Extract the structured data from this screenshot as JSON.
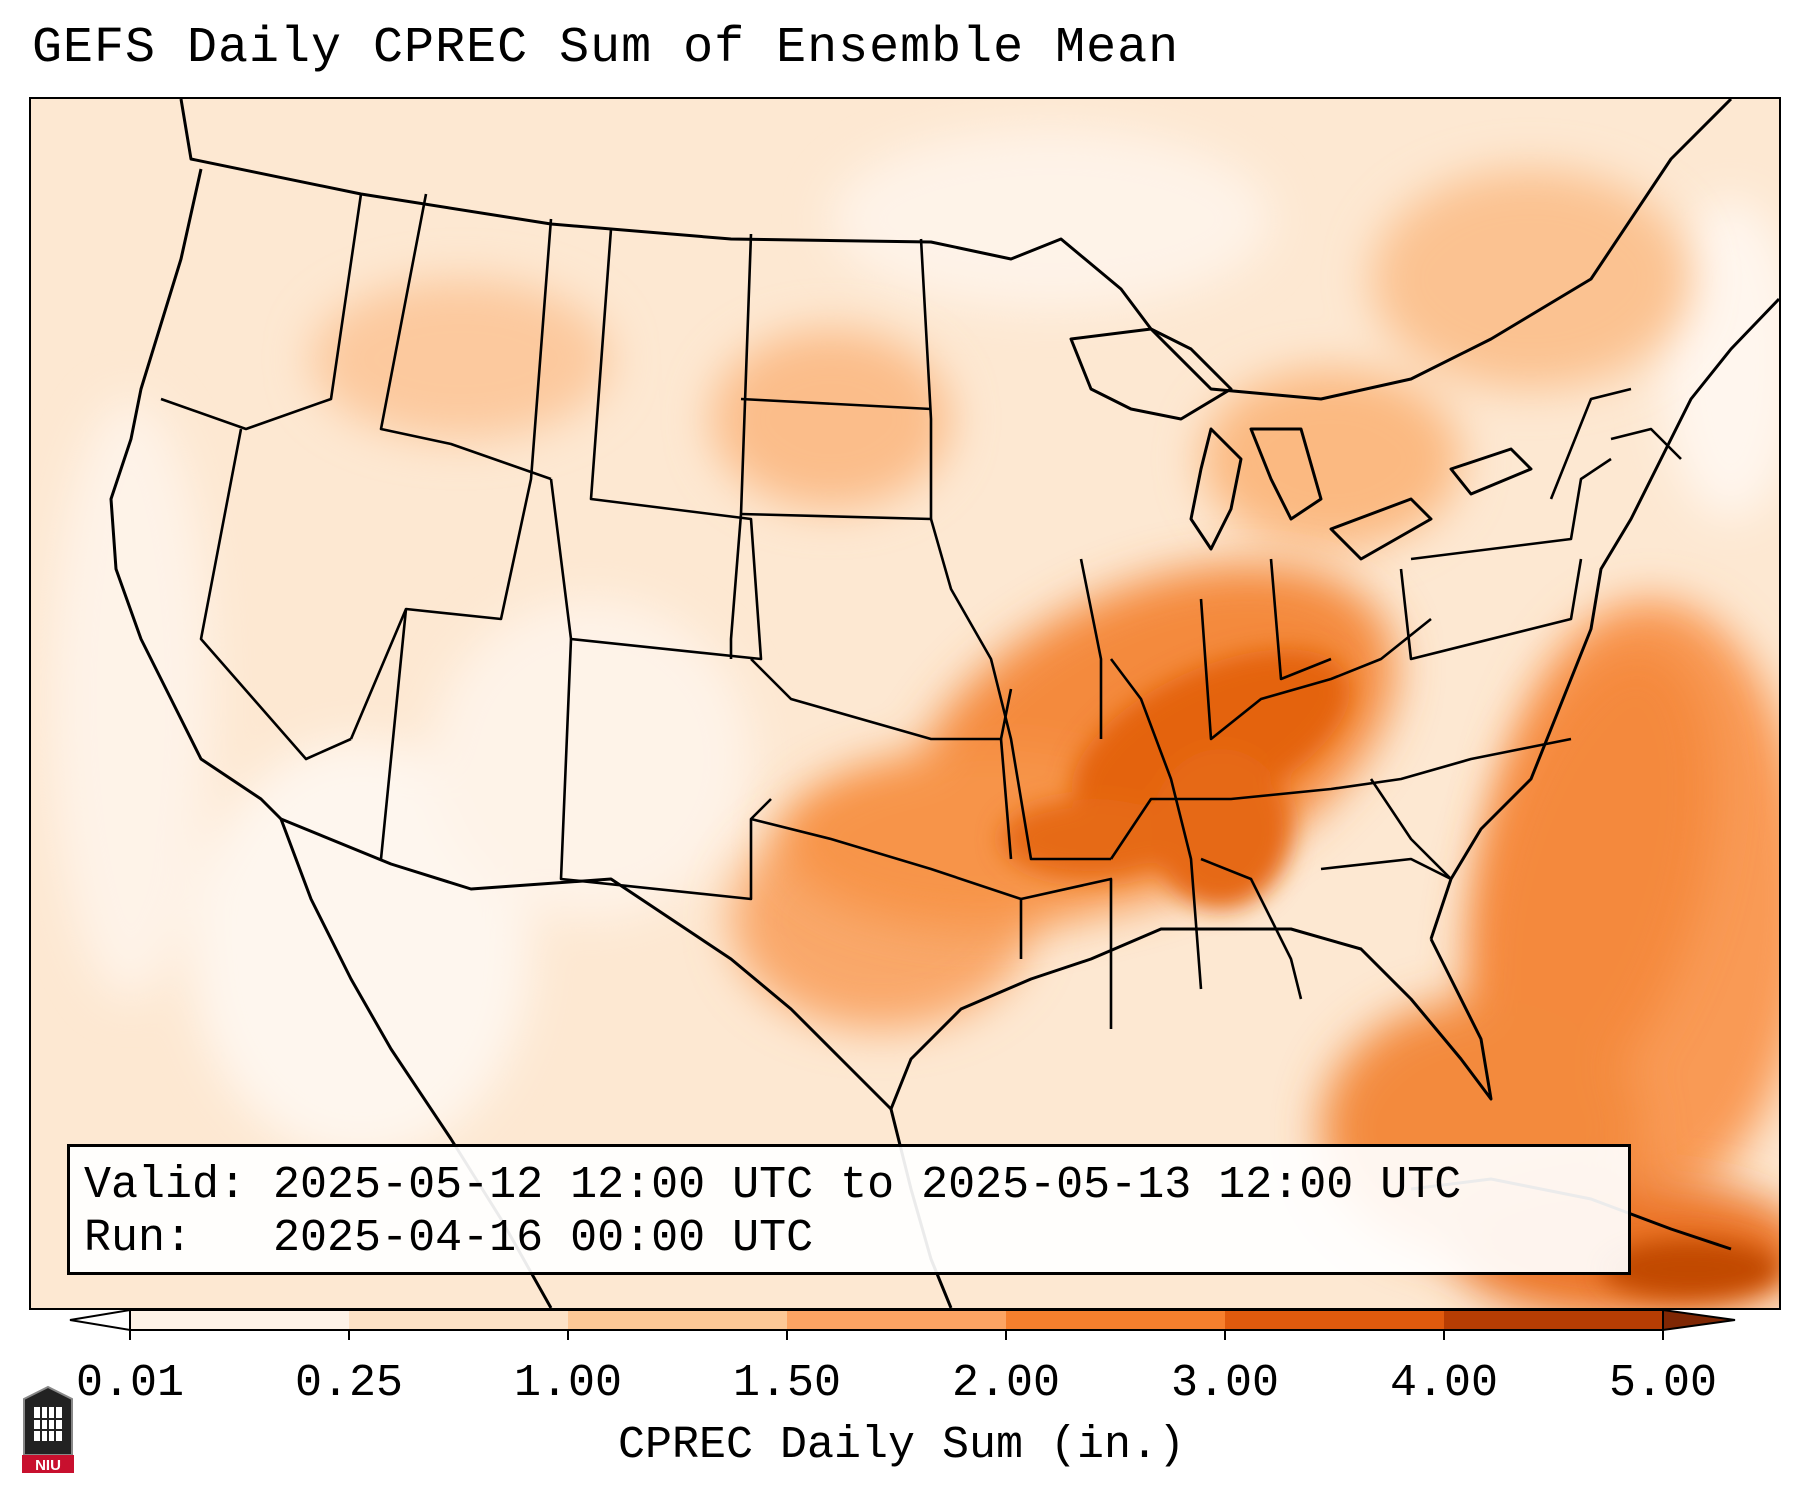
{
  "title": "GEFS Daily CPREC Sum of Ensemble Mean",
  "info": {
    "valid_label": "Valid:",
    "valid_value": "2025-05-12 12:00 UTC to 2025-05-13 12:00 UTC",
    "run_label": "Run:",
    "run_value": "2025-04-16 00:00 UTC"
  },
  "colorbar": {
    "label": "CPREC Daily Sum (in.)",
    "ticks": [
      "0.01",
      "0.25",
      "1.00",
      "1.50",
      "2.00",
      "3.00",
      "4.00",
      "5.00"
    ],
    "colors": [
      "#fef3e7",
      "#fde2c6",
      "#fdc896",
      "#fca463",
      "#f67f2d",
      "#e05a0d",
      "#b73d03",
      "#7f2704"
    ],
    "extend": "both"
  },
  "map": {
    "domain": "Continental United States",
    "precip_max_region": "Tennessee Valley / Ohio Valley",
    "basemap_layers": [
      "state-borders",
      "country-borders",
      "coastlines"
    ]
  },
  "logo": {
    "text": "NIU"
  }
}
